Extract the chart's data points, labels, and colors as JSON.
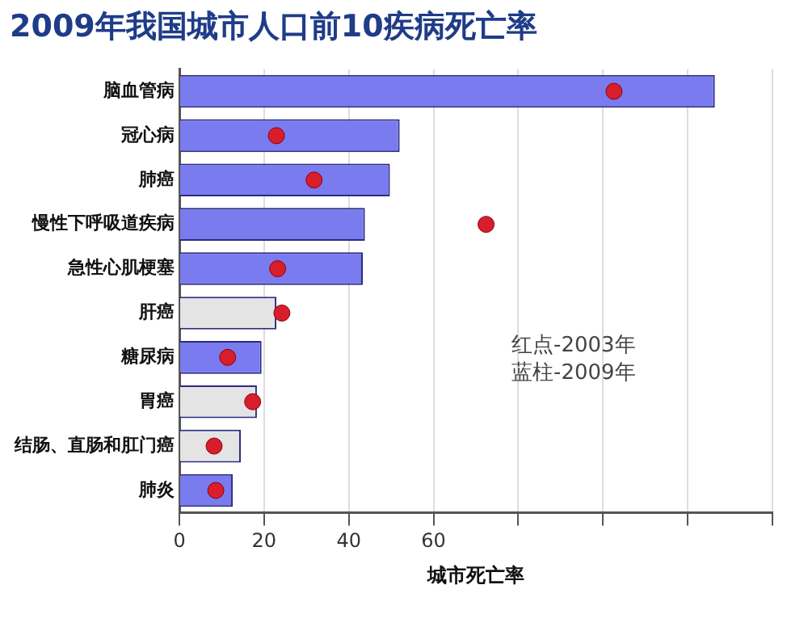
{
  "chart_data": {
    "type": "bar",
    "orientation": "horizontal",
    "title": "2009年我国城市人口前10疾病死亡率",
    "xlabel": "城市死亡率",
    "categories": [
      "脑血管病",
      "冠心病",
      "肺癌",
      "慢性下呼吸道疾病",
      "急性心肌梗塞",
      "肝癌",
      "糖尿病",
      "胃癌",
      "结肠、直肠和肛门癌",
      "肺炎"
    ],
    "series": [
      {
        "colors": [
          "#7b7bf0",
          "#7b7bf0",
          "#7b7bf0",
          "#7b7bf0",
          "#7b7bf0",
          "#e4e4e4",
          "#7b7bf0",
          "#e4e4e4",
          "#e4e4e4",
          "#7b7bf0"
        ],
        "values": [
          126.4,
          52,
          49.7,
          43.8,
          43.3,
          22.9,
          19.4,
          18.3,
          14.5,
          12.6
        ]
      },
      {
        "type": "scatter",
        "color": "#d81e2a",
        "marker": "circle",
        "values": [
          102.6,
          22.9,
          31.8,
          72.4,
          23.2,
          24.2,
          11.4,
          17.3,
          8.2,
          8.6
        ]
      }
    ],
    "xlim": [
      0,
      140
    ],
    "xticks": [
      0,
      20,
      40,
      60,
      {
        "value": 80,
        "label": null
      },
      {
        "value": 100,
        "label": null
      },
      {
        "value": 120,
        "label": null
      },
      {
        "value": 140,
        "label": null
      }
    ],
    "grid": "x",
    "legend": false,
    "annotations": [
      "红点-2003年",
      "蓝柱-2009年"
    ]
  }
}
